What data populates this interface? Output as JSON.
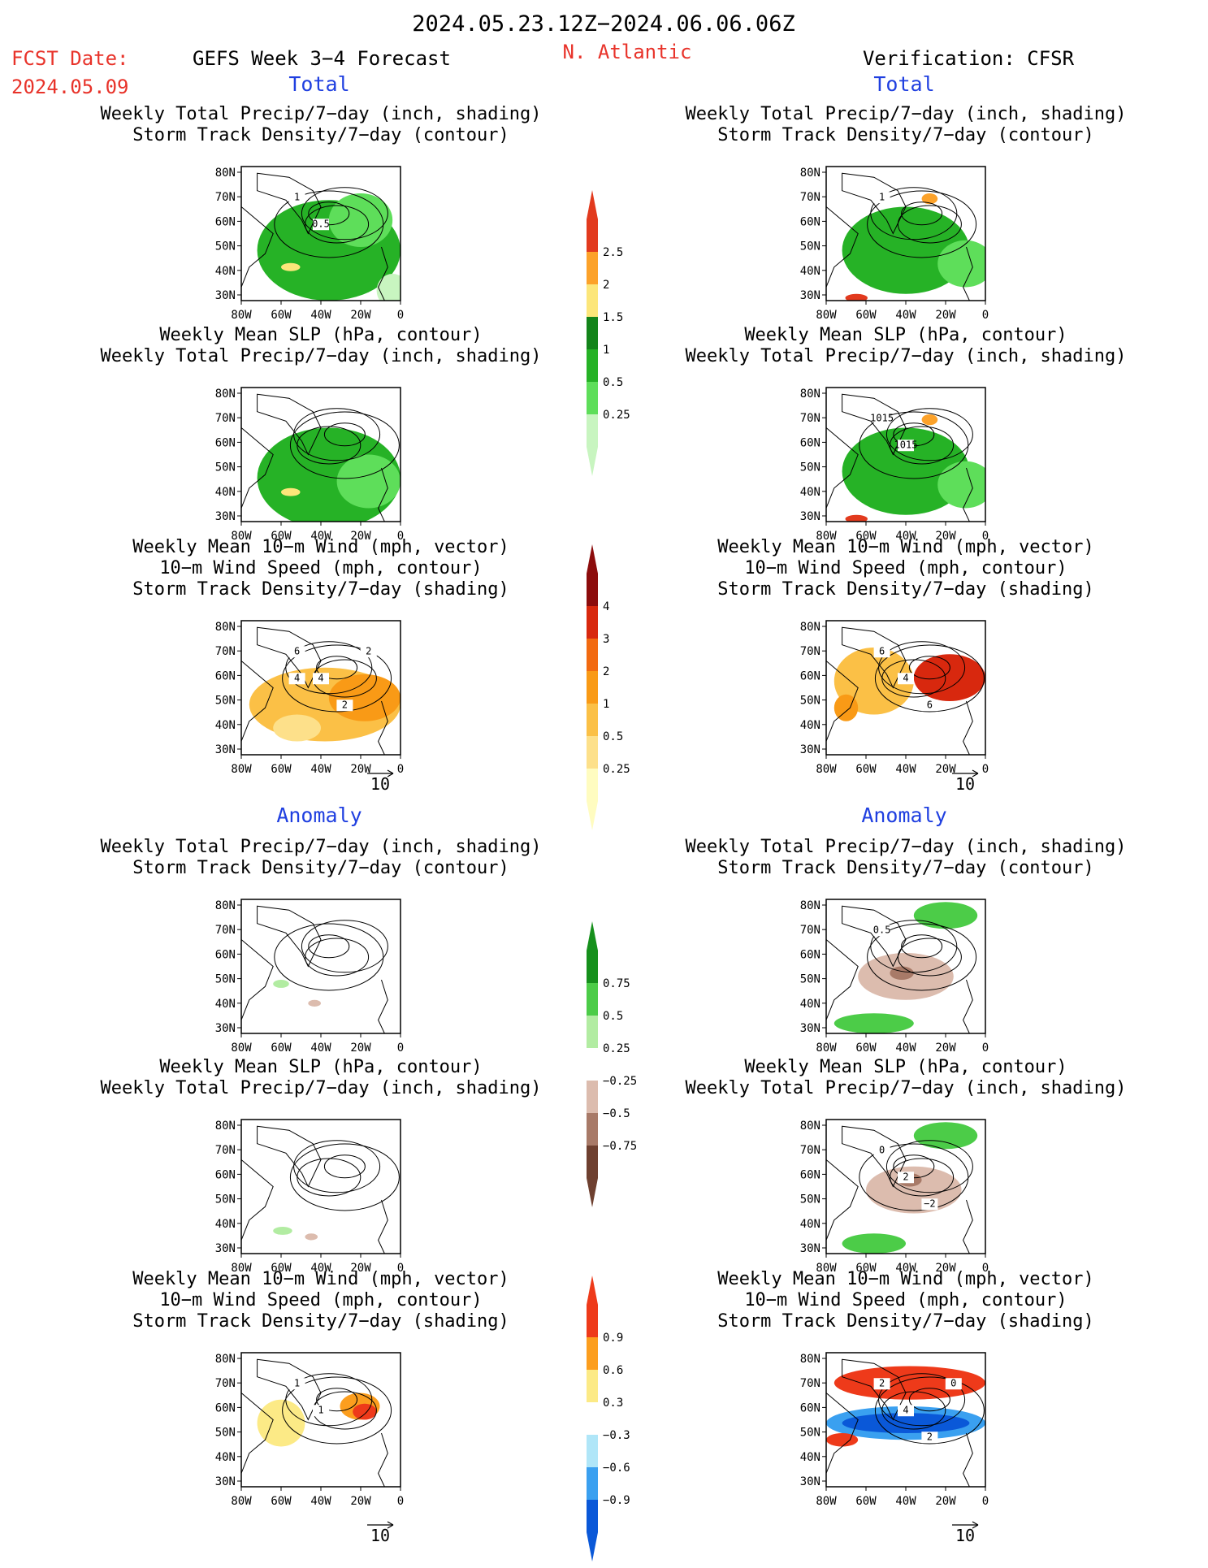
{
  "header": {
    "date_range": "2024.05.23.12Z−2024.06.06.06Z",
    "fcst_label": "FCST Date:",
    "fcst_date": "2024.05.09",
    "forecast_title": "GEFS Week 3−4 Forecast",
    "region": "N. Atlantic",
    "verification": "Verification: CFSR"
  },
  "colors": {
    "header_red": "#e8332a",
    "section_blue": "#1f3fe0",
    "land_line": "#000000"
  },
  "sections": {
    "total": "Total",
    "anomaly": "Anomaly"
  },
  "axes": {
    "lat_ticks": [
      "80N",
      "70N",
      "60N",
      "50N",
      "40N",
      "30N"
    ],
    "lon_ticks": [
      "80W",
      "60W",
      "40W",
      "20W",
      "0"
    ]
  },
  "panel_titles": {
    "precip_track": [
      "Weekly Total Precip/7−day (inch, shading)",
      "Storm Track Density/7−day (contour)"
    ],
    "slp_precip": [
      "Weekly Mean SLP (hPa, contour)",
      "Weekly Total Precip/7−day (inch, shading)"
    ],
    "wind_track": [
      "Weekly Mean 10−m Wind (mph, vector)",
      "10−m Wind Speed (mph, contour)",
      "Storm Track Density/7−day (shading)"
    ]
  },
  "vector_ref": "10",
  "colorbars": [
    {
      "name": "precip-total",
      "colors": [
        "#c8f5c0",
        "#5ede5a",
        "#26b226",
        "#13841a",
        "#fce67a",
        "#fca22a",
        "#e23a1e"
      ],
      "labels": [
        "0.25",
        "0.5",
        "1",
        "1.5",
        "2",
        "2.5"
      ]
    },
    {
      "name": "track-total",
      "colors": [
        "#fffcc0",
        "#fde08a",
        "#fbc046",
        "#f99a16",
        "#f26a10",
        "#d8280e",
        "#8c0c0c"
      ],
      "labels": [
        "0.25",
        "0.5",
        "1",
        "2",
        "3",
        "4"
      ]
    },
    {
      "name": "precip-anom",
      "colors": [
        "#6e4030",
        "#a87a68",
        "#dcbcae",
        "#ffffff",
        "#b2eca2",
        "#4ccc48",
        "#16901c"
      ],
      "labels": [
        "−0.75",
        "−0.5",
        "−0.25",
        "0.25",
        "0.5",
        "0.75"
      ]
    },
    {
      "name": "track-anom",
      "colors": [
        "#0a58d8",
        "#3aa0f0",
        "#b0e6f8",
        "#ffffff",
        "#fcea86",
        "#fc9e1e",
        "#ee3a1a"
      ],
      "labels": [
        "−0.9",
        "−0.6",
        "−0.3",
        "0.3",
        "0.6",
        "0.9"
      ]
    }
  ],
  "panels": [
    {
      "id": "tot-fc-precip",
      "title": "precip_track",
      "blobs": [
        [
          "#26b226",
          0.1,
          0.25,
          0.9,
          0.75
        ],
        [
          "#5ede5a",
          0.55,
          0.2,
          0.4,
          0.4
        ],
        [
          "#fce67a",
          0.25,
          0.72,
          0.12,
          0.06
        ],
        [
          "#c8f5c0",
          0.85,
          0.8,
          0.2,
          0.25
        ]
      ],
      "labels": [
        "1",
        "0.5"
      ]
    },
    {
      "id": "tot-an-precip",
      "title": "precip_track",
      "blobs": [
        [
          "#26b226",
          0.1,
          0.3,
          0.8,
          0.65
        ],
        [
          "#5ede5a",
          0.7,
          0.55,
          0.35,
          0.35
        ],
        [
          "#fca22a",
          0.6,
          0.2,
          0.1,
          0.08
        ],
        [
          "#e23a1e",
          0.12,
          0.95,
          0.14,
          0.06
        ]
      ],
      "labels": [
        "1"
      ]
    },
    {
      "id": "tot-fc-slp",
      "title": "slp_precip",
      "blobs": [
        [
          "#26b226",
          0.1,
          0.3,
          0.9,
          0.75
        ],
        [
          "#5ede5a",
          0.6,
          0.5,
          0.4,
          0.4
        ],
        [
          "#fce67a",
          0.25,
          0.75,
          0.12,
          0.06
        ]
      ],
      "labels": []
    },
    {
      "id": "tot-an-slp",
      "title": "slp_precip",
      "blobs": [
        [
          "#26b226",
          0.1,
          0.3,
          0.8,
          0.65
        ],
        [
          "#5ede5a",
          0.7,
          0.55,
          0.35,
          0.35
        ],
        [
          "#fca22a",
          0.6,
          0.2,
          0.1,
          0.08
        ],
        [
          "#e23a1e",
          0.12,
          0.95,
          0.14,
          0.06
        ]
      ],
      "labels": [
        "1015",
        "1015"
      ]
    },
    {
      "id": "tot-fc-wind",
      "title": "wind_track",
      "blobs": [
        [
          "#fbc046",
          0.05,
          0.35,
          0.95,
          0.55
        ],
        [
          "#f99a16",
          0.55,
          0.4,
          0.45,
          0.35
        ],
        [
          "#fde08a",
          0.2,
          0.7,
          0.3,
          0.2
        ]
      ],
      "labels": [
        "6",
        "4",
        "2",
        "2",
        "4"
      ]
    },
    {
      "id": "tot-an-wind",
      "title": "wind_track",
      "blobs": [
        [
          "#fbc046",
          0.05,
          0.2,
          0.5,
          0.5
        ],
        [
          "#d8280e",
          0.55,
          0.25,
          0.45,
          0.35
        ],
        [
          "#f99a16",
          0.05,
          0.55,
          0.15,
          0.2
        ]
      ],
      "labels": [
        "6",
        "4",
        "6"
      ]
    },
    {
      "id": "an-fc-precip",
      "title": "precip_track",
      "blobs": [
        [
          "#b2eca2",
          0.2,
          0.6,
          0.1,
          0.06
        ],
        [
          "#dcbcae",
          0.42,
          0.75,
          0.08,
          0.05
        ]
      ],
      "labels": []
    },
    {
      "id": "an-an-precip",
      "title": "precip_track",
      "blobs": [
        [
          "#4ccc48",
          0.55,
          0.02,
          0.4,
          0.2
        ],
        [
          "#dcbcae",
          0.2,
          0.4,
          0.6,
          0.35
        ],
        [
          "#4ccc48",
          0.05,
          0.85,
          0.5,
          0.15
        ],
        [
          "#a87a68",
          0.4,
          0.5,
          0.15,
          0.1
        ]
      ],
      "labels": [
        "0.5"
      ]
    },
    {
      "id": "an-fc-slp",
      "title": "slp_precip",
      "blobs": [
        [
          "#b2eca2",
          0.2,
          0.8,
          0.12,
          0.06
        ],
        [
          "#dcbcae",
          0.4,
          0.85,
          0.08,
          0.05
        ]
      ],
      "labels": []
    },
    {
      "id": "an-an-slp",
      "title": "slp_precip",
      "blobs": [
        [
          "#4ccc48",
          0.55,
          0.02,
          0.4,
          0.2
        ],
        [
          "#dcbcae",
          0.25,
          0.35,
          0.6,
          0.35
        ],
        [
          "#a87a68",
          0.45,
          0.4,
          0.15,
          0.1
        ],
        [
          "#4ccc48",
          0.1,
          0.85,
          0.4,
          0.15
        ]
      ],
      "labels": [
        "0",
        "2",
        "−2"
      ]
    },
    {
      "id": "an-fc-wind",
      "title": "wind_track",
      "blobs": [
        [
          "#fcea86",
          0.1,
          0.35,
          0.3,
          0.35
        ],
        [
          "#fc9e1e",
          0.62,
          0.3,
          0.25,
          0.2
        ],
        [
          "#ee3a1a",
          0.7,
          0.38,
          0.15,
          0.12
        ]
      ],
      "labels": [
        "1",
        "1"
      ]
    },
    {
      "id": "an-an-wind",
      "title": "wind_track",
      "blobs": [
        [
          "#ee3a1a",
          0.05,
          0.1,
          0.95,
          0.25
        ],
        [
          "#3aa0f0",
          0.0,
          0.4,
          1.0,
          0.25
        ],
        [
          "#0a58d8",
          0.1,
          0.45,
          0.8,
          0.15
        ],
        [
          "#ee3a1a",
          0.0,
          0.6,
          0.2,
          0.1
        ]
      ],
      "labels": [
        "2",
        "4",
        "2",
        "0"
      ]
    }
  ]
}
